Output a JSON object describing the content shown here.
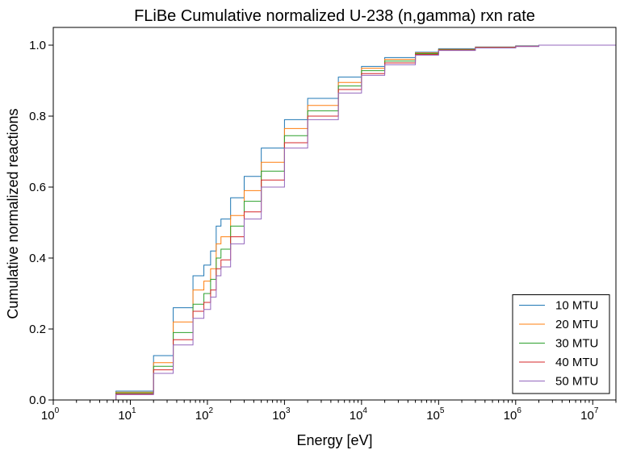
{
  "chart_data": {
    "type": "line",
    "title": "FLiBe Cumulative normalized U-238 (n,gamma) rxn rate",
    "xlabel": "Energy [eV]",
    "ylabel": "Cumulative normalized reactions",
    "x_scale": "log",
    "xlim": [
      1,
      20000000
    ],
    "ylim": [
      0,
      1.05
    ],
    "x_ticks": [
      {
        "base": "10",
        "exp": "0",
        "value": 1
      },
      {
        "base": "10",
        "exp": "1",
        "value": 10
      },
      {
        "base": "10",
        "exp": "2",
        "value": 100
      },
      {
        "base": "10",
        "exp": "3",
        "value": 1000
      },
      {
        "base": "10",
        "exp": "4",
        "value": 10000
      },
      {
        "base": "10",
        "exp": "5",
        "value": 100000
      },
      {
        "base": "10",
        "exp": "6",
        "value": 1000000
      },
      {
        "base": "10",
        "exp": "7",
        "value": 10000000
      }
    ],
    "y_ticks": [
      "0.0",
      "0.2",
      "0.4",
      "0.6",
      "0.8",
      "1.0"
    ],
    "y_tick_values": [
      0,
      0.2,
      0.4,
      0.6,
      0.8,
      1.0
    ],
    "grid": false,
    "legend_position": "bottom-right",
    "x": [
      1,
      6.5,
      20,
      36,
      65,
      90,
      110,
      130,
      150,
      200,
      300,
      500,
      1000,
      2000,
      5000,
      10000,
      20000,
      50000,
      100000,
      300000,
      1000000,
      2000000,
      20000000
    ],
    "series": [
      {
        "name": "10 MTU",
        "color": "#1f77b4",
        "values": [
          0.0,
          0.025,
          0.125,
          0.26,
          0.35,
          0.38,
          0.42,
          0.49,
          0.51,
          0.57,
          0.63,
          0.71,
          0.79,
          0.85,
          0.91,
          0.94,
          0.965,
          0.98,
          0.99,
          0.995,
          0.998,
          1.0,
          1.0
        ]
      },
      {
        "name": "20 MTU",
        "color": "#ff7f0e",
        "values": [
          0.0,
          0.022,
          0.105,
          0.22,
          0.31,
          0.335,
          0.37,
          0.44,
          0.46,
          0.52,
          0.59,
          0.67,
          0.765,
          0.83,
          0.895,
          0.935,
          0.96,
          0.978,
          0.988,
          0.994,
          0.997,
          1.0,
          1.0
        ]
      },
      {
        "name": "30 MTU",
        "color": "#2ca02c",
        "values": [
          0.0,
          0.02,
          0.095,
          0.19,
          0.27,
          0.3,
          0.34,
          0.4,
          0.425,
          0.49,
          0.56,
          0.645,
          0.745,
          0.815,
          0.885,
          0.928,
          0.955,
          0.976,
          0.987,
          0.993,
          0.997,
          1.0,
          1.0
        ]
      },
      {
        "name": "40 MTU",
        "color": "#d62728",
        "values": [
          0.0,
          0.017,
          0.085,
          0.17,
          0.25,
          0.275,
          0.31,
          0.37,
          0.395,
          0.46,
          0.53,
          0.62,
          0.725,
          0.8,
          0.875,
          0.92,
          0.95,
          0.974,
          0.986,
          0.993,
          0.997,
          1.0,
          1.0
        ]
      },
      {
        "name": "50 MTU",
        "color": "#9467bd",
        "values": [
          0.0,
          0.015,
          0.075,
          0.155,
          0.23,
          0.255,
          0.29,
          0.35,
          0.375,
          0.44,
          0.51,
          0.6,
          0.71,
          0.79,
          0.865,
          0.915,
          0.945,
          0.972,
          0.985,
          0.992,
          0.996,
          1.0,
          1.0
        ]
      }
    ]
  }
}
